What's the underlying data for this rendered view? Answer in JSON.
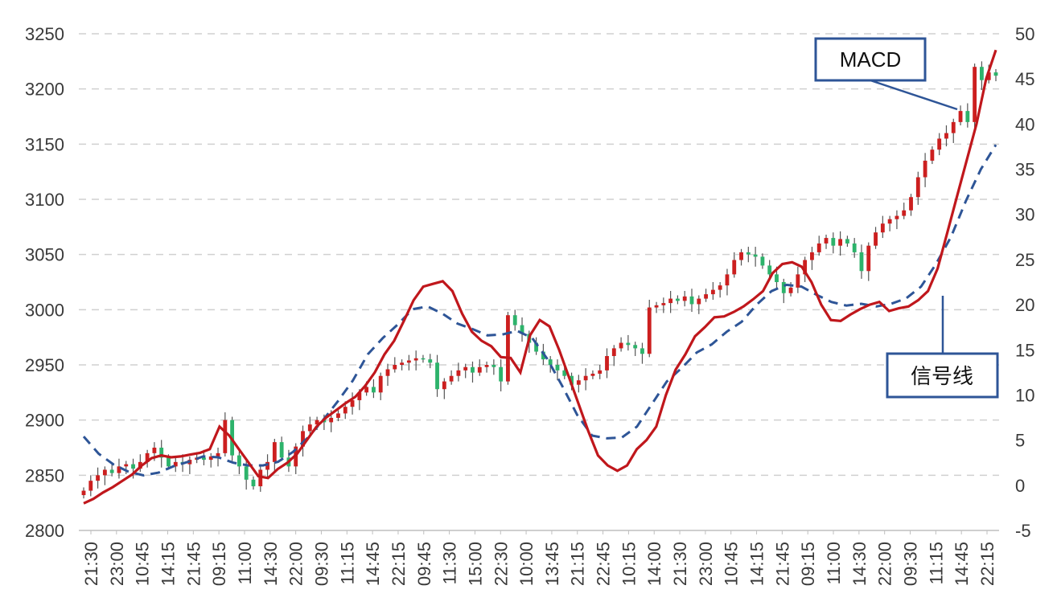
{
  "chart_data": {
    "type": "candlestick+line",
    "title": "",
    "left_axis": {
      "min": 2800,
      "max": 3250,
      "ticks": [
        3250,
        3200,
        3150,
        3100,
        3050,
        3000,
        2950,
        2900,
        2850,
        2800
      ]
    },
    "right_axis": {
      "min": -5,
      "max": 50,
      "ticks": [
        50,
        45,
        40,
        35,
        30,
        25,
        20,
        15,
        10,
        5,
        0,
        -5
      ]
    },
    "x_tick_labels": [
      "21:30",
      "23:00",
      "10:45",
      "14:15",
      "21:45",
      "09:15",
      "11:00",
      "14:30",
      "22:00",
      "09:30",
      "11:15",
      "14:45",
      "22:15",
      "09:45",
      "11:30",
      "15:00",
      "22:30",
      "10:00",
      "13:45",
      "21:15",
      "22:45",
      "10:15",
      "14:00",
      "21:30",
      "23:00",
      "10:45",
      "14:15",
      "21:45",
      "09:15",
      "11:00",
      "14:30",
      "22:00",
      "09:30",
      "11:15",
      "14:45",
      "22:15"
    ],
    "grid": "horizontal-dashed",
    "candle_up_color": "#cc1f1f",
    "candle_down_color": "#2db36b",
    "macd_color": "#c0171c",
    "signal_color": "#2e5597",
    "price_close": [
      2836,
      2845,
      2850,
      2855,
      2852,
      2858,
      2860,
      2856,
      2862,
      2870,
      2875,
      2866,
      2858,
      2862,
      2860,
      2864,
      2866,
      2864,
      2867,
      2870,
      2900,
      2868,
      2858,
      2846,
      2840,
      2855,
      2862,
      2880,
      2866,
      2858,
      2876,
      2890,
      2896,
      2900,
      2898,
      2902,
      2906,
      2912,
      2918,
      2925,
      2930,
      2925,
      2940,
      2946,
      2950,
      2952,
      2954,
      2956,
      2955,
      2952,
      2928,
      2935,
      2940,
      2945,
      2948,
      2943,
      2948,
      2950,
      2948,
      2935,
      2995,
      2986,
      2978,
      2970,
      2962,
      2955,
      2950,
      2945,
      2940,
      2932,
      2936,
      2940,
      2942,
      2945,
      2958,
      2965,
      2970,
      2968,
      2965,
      2960,
      3002,
      3004,
      3006,
      3010,
      3008,
      3012,
      3005,
      3010,
      3014,
      3018,
      3022,
      3032,
      3045,
      3052,
      3050,
      3048,
      3040,
      3032,
      3025,
      3015,
      3020,
      3032,
      3045,
      3052,
      3060,
      3065,
      3058,
      3064,
      3060,
      3052,
      3035,
      3058,
      3070,
      3078,
      3082,
      3085,
      3090,
      3102,
      3120,
      3135,
      3145,
      3155,
      3160,
      3170,
      3180,
      3170,
      3220,
      3208,
      3215,
      3212
    ],
    "macd_series": [
      -2,
      -1.5,
      -0.8,
      -0.2,
      0.5,
      1.2,
      2.2,
      3,
      3.3,
      3.1,
      3.2,
      3.4,
      3.6,
      4,
      6.5,
      5.5,
      4,
      2.5,
      1,
      0.8,
      1.8,
      2.5,
      3.5,
      5,
      6.5,
      7.5,
      8.3,
      9.1,
      9.8,
      11,
      12.5,
      14.5,
      16,
      18.2,
      20.5,
      22,
      22.3,
      22.6,
      21.5,
      19,
      17,
      16,
      15.4,
      14.2,
      14.1,
      12.5,
      16.6,
      18.3,
      17.6,
      15,
      12,
      9,
      6,
      3.3,
      2.2,
      1.6,
      2.2,
      4,
      5,
      6.5,
      10,
      12.8,
      14.5,
      16.5,
      17.5,
      18.6,
      18.7,
      19.2,
      19.8,
      20.6,
      21.5,
      23.5,
      24.5,
      24.7,
      24.2,
      22.5,
      20,
      18.3,
      18.2,
      18.9,
      19.5,
      20,
      20.3,
      19.3,
      19.6,
      19.8,
      20.5,
      21.5,
      24,
      28,
      32,
      36,
      40,
      45,
      48.2
    ],
    "signal_series": [
      5.4,
      3.5,
      2.3,
      1.5,
      1.1,
      1.4,
      2.1,
      2.6,
      3.2,
      3.1,
      2.5,
      2.2,
      2.2,
      2.6,
      3.7,
      5.3,
      7.2,
      9.3,
      11.6,
      14.5,
      16.3,
      17.8,
      19.5,
      19.8,
      19,
      17.9,
      17.3,
      16.6,
      16.7,
      17.1,
      16.3,
      14,
      11,
      7.8,
      5.5,
      5.2,
      5.3,
      6.5,
      9,
      11.5,
      13,
      14.7,
      15.6,
      17,
      18.1,
      20,
      21.5,
      22.2,
      22,
      21.1,
      20.3,
      19.9,
      20.1,
      19.8,
      20.1,
      20.7,
      22,
      24.5,
      27.5,
      31.5,
      35,
      37.7
    ]
  },
  "callouts": {
    "macd_label": "MACD",
    "signal_label": "信号线"
  }
}
